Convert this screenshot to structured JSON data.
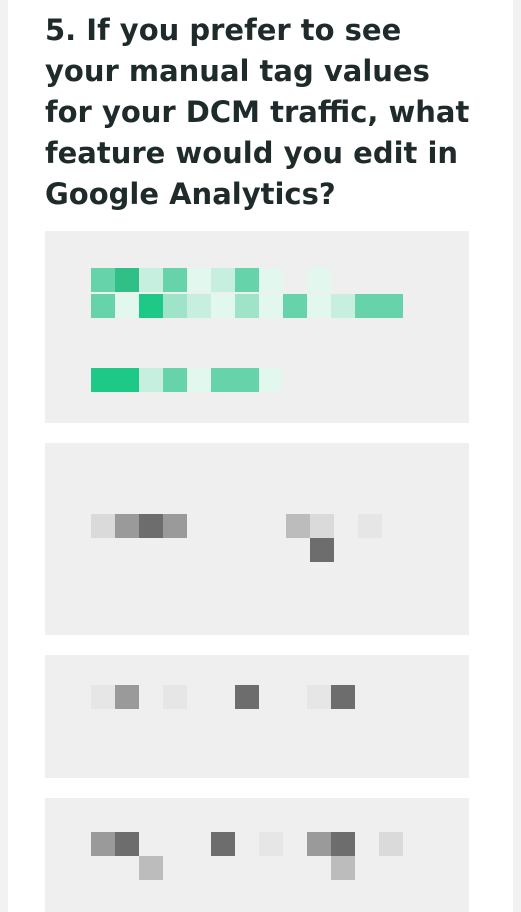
{
  "question": {
    "text": "5. If you prefer to see your manual tag values for your DCM traffic, what feature would you edit in Google Analytics?"
  },
  "options": [
    {
      "label": "",
      "selected": true,
      "accent": "#1ec887"
    },
    {
      "label": "",
      "selected": false
    },
    {
      "label": "",
      "selected": false
    },
    {
      "label": "",
      "selected": false
    }
  ],
  "colors": {
    "page_background": "#ffffff",
    "option_background": "#efefef",
    "title_color": "#1f2a2a",
    "selected_accent": "#1ec887"
  }
}
